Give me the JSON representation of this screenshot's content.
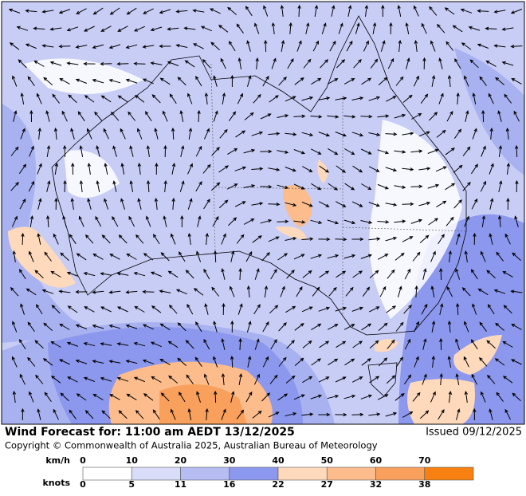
{
  "title": "Wind Forecast for: 11:00 am AEDT 13/12/2025",
  "issued": "Issued 09/12/2025",
  "copyright": "Copyright © Commonwealth of Australia 2025, Australian Bureau of Meteorology",
  "legend": {
    "kmh_label": "km/h",
    "knots_label": "knots",
    "kmh": [
      "0",
      "10",
      "20",
      "30",
      "40",
      "50",
      "60",
      "70"
    ],
    "knots": [
      "0",
      "5",
      "11",
      "16",
      "22",
      "27",
      "32",
      "38"
    ],
    "colors": [
      "#ffffff",
      "#d9ddf9",
      "#b5bdf3",
      "#8c98ee",
      "#fed9bb",
      "#fcbc8c",
      "#f9a15c",
      "#f88010"
    ]
  }
}
